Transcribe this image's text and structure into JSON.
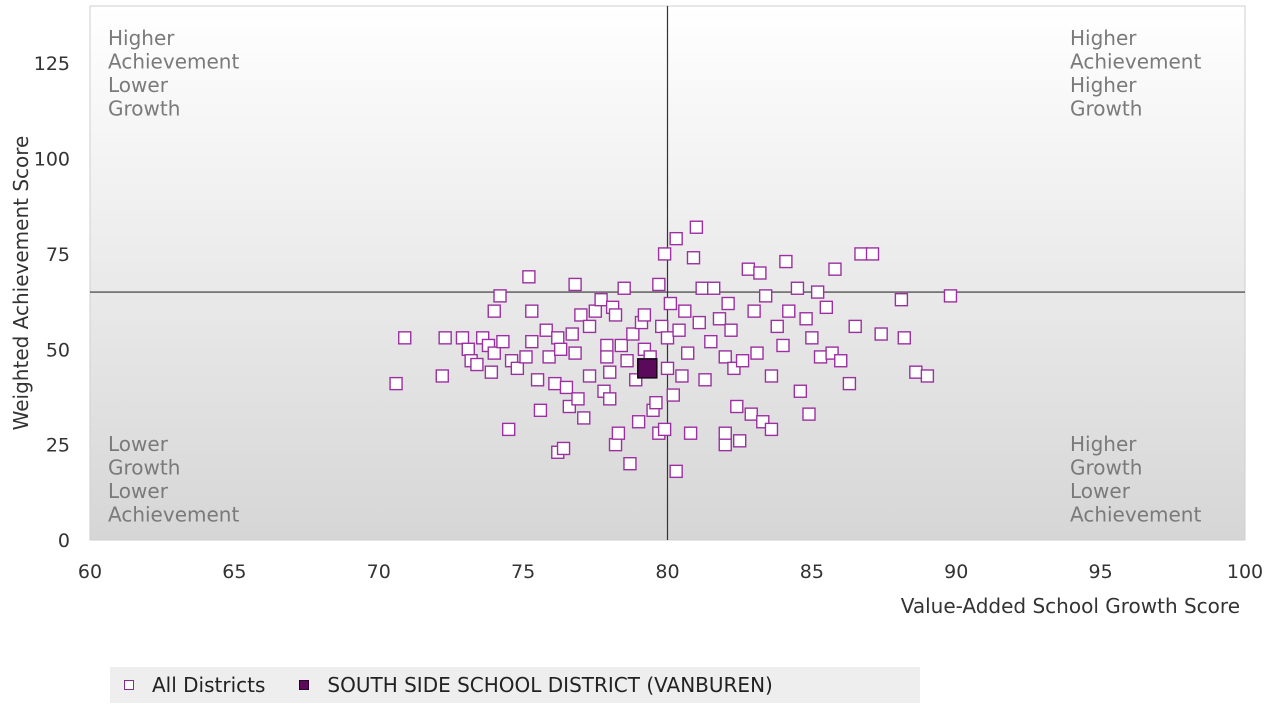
{
  "chart_data": {
    "type": "scatter",
    "xlabel": "Value-Added School Growth Score",
    "ylabel": "Weighted Achievement Score",
    "xlim": [
      60,
      100
    ],
    "ylim": [
      0,
      140
    ],
    "xticks": [
      60,
      65,
      70,
      75,
      80,
      85,
      90,
      95,
      100
    ],
    "yticks": [
      0,
      25,
      50,
      75,
      100,
      125
    ],
    "reference_lines": {
      "x": 80,
      "y": 65
    },
    "quadrant_labels": {
      "top_left": [
        "Higher",
        "Achievement",
        "Lower",
        "Growth"
      ],
      "top_right": [
        "Higher",
        "Achievement",
        "Higher",
        "Growth"
      ],
      "bottom_left": [
        "Lower",
        "Growth",
        "Lower",
        "Achievement"
      ],
      "bottom_right": [
        "Higher",
        "Growth",
        "Lower",
        "Achievement"
      ]
    },
    "colors": {
      "all_districts": "#9b30a0",
      "highlight_fill": "#5b0a5b"
    },
    "series": [
      {
        "name": "All Districts",
        "marker": "hollow-square",
        "points": [
          [
            70.6,
            41
          ],
          [
            70.9,
            53
          ],
          [
            72.2,
            43
          ],
          [
            72.3,
            53
          ],
          [
            72.9,
            53
          ],
          [
            73.1,
            50
          ],
          [
            73.2,
            47
          ],
          [
            73.4,
            46
          ],
          [
            73.6,
            53
          ],
          [
            73.8,
            51
          ],
          [
            73.9,
            44
          ],
          [
            74,
            49
          ],
          [
            74,
            60
          ],
          [
            74.2,
            64
          ],
          [
            74.3,
            52
          ],
          [
            74.5,
            29
          ],
          [
            74.6,
            47
          ],
          [
            74.8,
            45
          ],
          [
            75.1,
            48
          ],
          [
            75.2,
            69
          ],
          [
            75.3,
            60
          ],
          [
            75.3,
            52
          ],
          [
            75.5,
            42
          ],
          [
            75.6,
            34
          ],
          [
            75.8,
            55
          ],
          [
            75.9,
            48
          ],
          [
            76.1,
            41
          ],
          [
            76.2,
            23
          ],
          [
            76.2,
            53
          ],
          [
            76.3,
            50
          ],
          [
            76.4,
            24
          ],
          [
            76.5,
            40
          ],
          [
            76.6,
            35
          ],
          [
            76.7,
            54
          ],
          [
            76.8,
            49
          ],
          [
            76.8,
            67
          ],
          [
            76.9,
            37
          ],
          [
            77,
            59
          ],
          [
            77.1,
            32
          ],
          [
            77.3,
            56
          ],
          [
            77.3,
            43
          ],
          [
            77.5,
            60
          ],
          [
            77.7,
            63
          ],
          [
            77.8,
            39
          ],
          [
            77.9,
            51
          ],
          [
            77.9,
            48
          ],
          [
            78,
            44
          ],
          [
            78,
            37
          ],
          [
            78.1,
            61
          ],
          [
            78.2,
            25
          ],
          [
            78.2,
            59
          ],
          [
            78.3,
            28
          ],
          [
            78.4,
            51
          ],
          [
            78.5,
            66
          ],
          [
            78.6,
            47
          ],
          [
            78.7,
            20
          ],
          [
            78.8,
            54
          ],
          [
            78.9,
            42
          ],
          [
            79,
            31
          ],
          [
            79.1,
            57
          ],
          [
            79.2,
            59
          ],
          [
            79.2,
            50
          ],
          [
            79.4,
            48
          ],
          [
            79.5,
            34
          ],
          [
            79.6,
            36
          ],
          [
            79.7,
            67
          ],
          [
            79.7,
            28
          ],
          [
            79.8,
            56
          ],
          [
            79.9,
            75
          ],
          [
            79.9,
            29
          ],
          [
            80,
            53
          ],
          [
            80,
            45
          ],
          [
            80.1,
            62
          ],
          [
            80.2,
            38
          ],
          [
            80.3,
            79
          ],
          [
            80.3,
            18
          ],
          [
            80.4,
            55
          ],
          [
            80.5,
            43
          ],
          [
            80.6,
            60
          ],
          [
            80.7,
            49
          ],
          [
            80.8,
            28
          ],
          [
            80.9,
            74
          ],
          [
            81,
            82
          ],
          [
            81.1,
            57
          ],
          [
            81.2,
            66
          ],
          [
            81.3,
            42
          ],
          [
            81.5,
            52
          ],
          [
            81.6,
            66
          ],
          [
            81.8,
            58
          ],
          [
            82,
            48
          ],
          [
            82,
            25
          ],
          [
            82,
            28
          ],
          [
            82.1,
            62
          ],
          [
            82.2,
            55
          ],
          [
            82.3,
            45
          ],
          [
            82.4,
            35
          ],
          [
            82.5,
            26
          ],
          [
            82.6,
            47
          ],
          [
            82.8,
            71
          ],
          [
            82.9,
            33
          ],
          [
            83,
            60
          ],
          [
            83.1,
            49
          ],
          [
            83.2,
            70
          ],
          [
            83.3,
            31
          ],
          [
            83.4,
            64
          ],
          [
            83.6,
            43
          ],
          [
            83.6,
            29
          ],
          [
            83.8,
            56
          ],
          [
            84,
            51
          ],
          [
            84.1,
            73
          ],
          [
            84.2,
            60
          ],
          [
            84.5,
            66
          ],
          [
            84.6,
            39
          ],
          [
            84.8,
            58
          ],
          [
            84.9,
            33
          ],
          [
            85,
            53
          ],
          [
            85.2,
            65
          ],
          [
            85.3,
            48
          ],
          [
            85.5,
            61
          ],
          [
            85.7,
            49
          ],
          [
            85.8,
            71
          ],
          [
            86,
            47
          ],
          [
            86.3,
            41
          ],
          [
            86.5,
            56
          ],
          [
            86.7,
            75
          ],
          [
            87.1,
            75
          ],
          [
            87.4,
            54
          ],
          [
            88.1,
            63
          ],
          [
            88.2,
            53
          ],
          [
            88.6,
            44
          ],
          [
            89,
            43
          ],
          [
            89.8,
            64
          ]
        ]
      },
      {
        "name": "SOUTH SIDE SCHOOL DISTRICT (VANBUREN)",
        "marker": "filled-square",
        "points": [
          [
            79.3,
            45
          ]
        ]
      }
    ]
  },
  "legend": {
    "items": [
      {
        "label": "All Districts"
      },
      {
        "label": "SOUTH SIDE SCHOOL DISTRICT (VANBUREN)"
      }
    ]
  }
}
